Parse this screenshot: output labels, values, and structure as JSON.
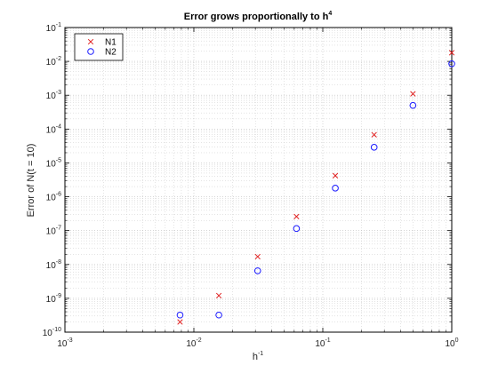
{
  "chart_data": {
    "type": "scatter",
    "title": "Error grows proportionally to h",
    "title_superscript": "4",
    "xlabel": "h",
    "xlabel_superscript": "-1",
    "ylabel": "Error of N(t = 10)",
    "x_scale": "log",
    "y_scale": "log",
    "xlim": [
      0.001,
      1
    ],
    "ylim": [
      1e-10,
      0.1
    ],
    "grid": true,
    "minor_grid": true,
    "legend_position": "top-left",
    "x_ticks": [
      {
        "base": "10",
        "exp": "-3"
      },
      {
        "base": "10",
        "exp": "-2"
      },
      {
        "base": "10",
        "exp": "-1"
      },
      {
        "base": "10",
        "exp": "0"
      }
    ],
    "y_ticks": [
      {
        "base": "10",
        "exp": "-10"
      },
      {
        "base": "10",
        "exp": "-9"
      },
      {
        "base": "10",
        "exp": "-8"
      },
      {
        "base": "10",
        "exp": "-7"
      },
      {
        "base": "10",
        "exp": "-6"
      },
      {
        "base": "10",
        "exp": "-5"
      },
      {
        "base": "10",
        "exp": "-4"
      },
      {
        "base": "10",
        "exp": "-3"
      },
      {
        "base": "10",
        "exp": "-2"
      },
      {
        "base": "10",
        "exp": "-1"
      }
    ],
    "series": [
      {
        "name": "N1",
        "marker": "x",
        "color": "#e02020",
        "points": [
          {
            "x": 0.0078125,
            "y": 2e-10
          },
          {
            "x": 0.015625,
            "y": 1.2e-09
          },
          {
            "x": 0.03125,
            "y": 1.7e-08
          },
          {
            "x": 0.0625,
            "y": 2.6e-07
          },
          {
            "x": 0.125,
            "y": 4.2e-06
          },
          {
            "x": 0.25,
            "y": 6.8e-05
          },
          {
            "x": 0.5,
            "y": 0.0011
          },
          {
            "x": 1.0,
            "y": 0.018
          }
        ]
      },
      {
        "name": "N2",
        "marker": "o",
        "color": "#1a1aff",
        "points": [
          {
            "x": 0.0078125,
            "y": 3.2e-10
          },
          {
            "x": 0.015625,
            "y": 3.2e-10
          },
          {
            "x": 0.03125,
            "y": 6.5e-09
          },
          {
            "x": 0.0625,
            "y": 1.15e-07
          },
          {
            "x": 0.125,
            "y": 1.8e-06
          },
          {
            "x": 0.25,
            "y": 2.9e-05
          },
          {
            "x": 0.5,
            "y": 0.0005
          },
          {
            "x": 1.0,
            "y": 0.0085
          }
        ]
      }
    ]
  }
}
